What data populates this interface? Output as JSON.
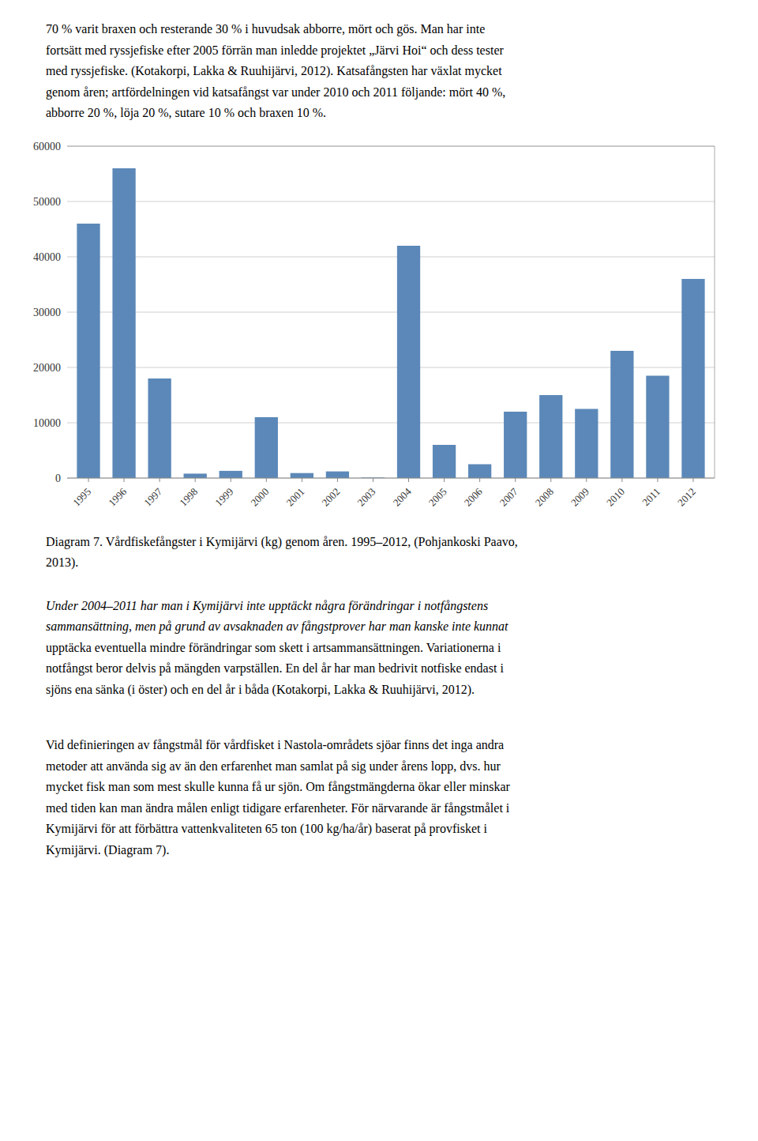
{
  "text_above": [
    "70 % varit braxen och resterande 30 % i huvudsak abborre, mört och gös.  Man har inte",
    "fortsätt med ryssjefiske efter 2005 förrän man inledde projektet „Järvi Hoi“ och dess tester",
    "med ryssjefiske. (Kotakorpi, Lakka & Ruuhijärvi, 2012). Katsafångsten har växlat mycket",
    "genom åren; artfördelningen vid katsafångst var under 2010 och 2011 följande: mört 40 %,",
    "abborre 20 %, löja 20 %, sutare 10 % och braxen 10 %."
  ],
  "chart_data": {
    "type": "bar",
    "caption": [
      "Diagram 7. Vårdfiskefångster i Kymijärvi (kg) genom åren. 1995–2012, (Pohjankoski Paavo,",
      "2013)."
    ],
    "categories": [
      "1995",
      "1996",
      "1997",
      "1998",
      "1999",
      "2000",
      "2001",
      "2002",
      "2003",
      "2004",
      "2005",
      "2006",
      "2007",
      "2008",
      "2009",
      "2010",
      "2011",
      "2012"
    ],
    "values": [
      46000,
      56000,
      18000,
      800,
      1300,
      11000,
      900,
      1200,
      100,
      42000,
      6000,
      2500,
      12000,
      15000,
      12500,
      23000,
      18500,
      36000
    ],
    "color": "#5b88b8",
    "ylim": [
      0,
      60000
    ],
    "yticks": [
      0,
      10000,
      20000,
      30000,
      40000,
      50000,
      60000
    ],
    "grid": true
  },
  "text_middle": [
    "Under 2004–2011 har man i Kymijärvi inte upptäckt några förändringar i notfångstens",
    "samman­sättning, men på grund av avsaknaden av fångstprover har man kanske inte kunnat",
    "upptäcka eventuella mindre förändringar som skett i artsamman­sättningen. Variationerna i",
    "notfångst beror delvis på mängden varpställen. En del år har man bedrivit notfiske endast i",
    "sjöns ena sänka (i öster) och en del år i båda (Kotakorpi, Lakka & Ruuhijärvi, 2012)."
  ],
  "text_below": [
    "Vid definieringen av fångstmål för vårdfisket i Nastola-områdets sjöar finns det inga andra",
    "metoder att använda sig av än den erfarenhet man samlat på sig under årens lopp, dvs. hur",
    "mycket fisk man som mest skulle kunna få ur sjön. Om fångstmängderna ökar eller minskar",
    "med tiden kan man ändra målen enligt tidigare erfarenheter. För närvarande är fångstmålet i",
    "Kymijärvi för att förbättra vattenkvaliteten 65 ton (100 kg/ha/år) baserat på provfisket i",
    "Kymijärvi. (Diagram 7)."
  ]
}
